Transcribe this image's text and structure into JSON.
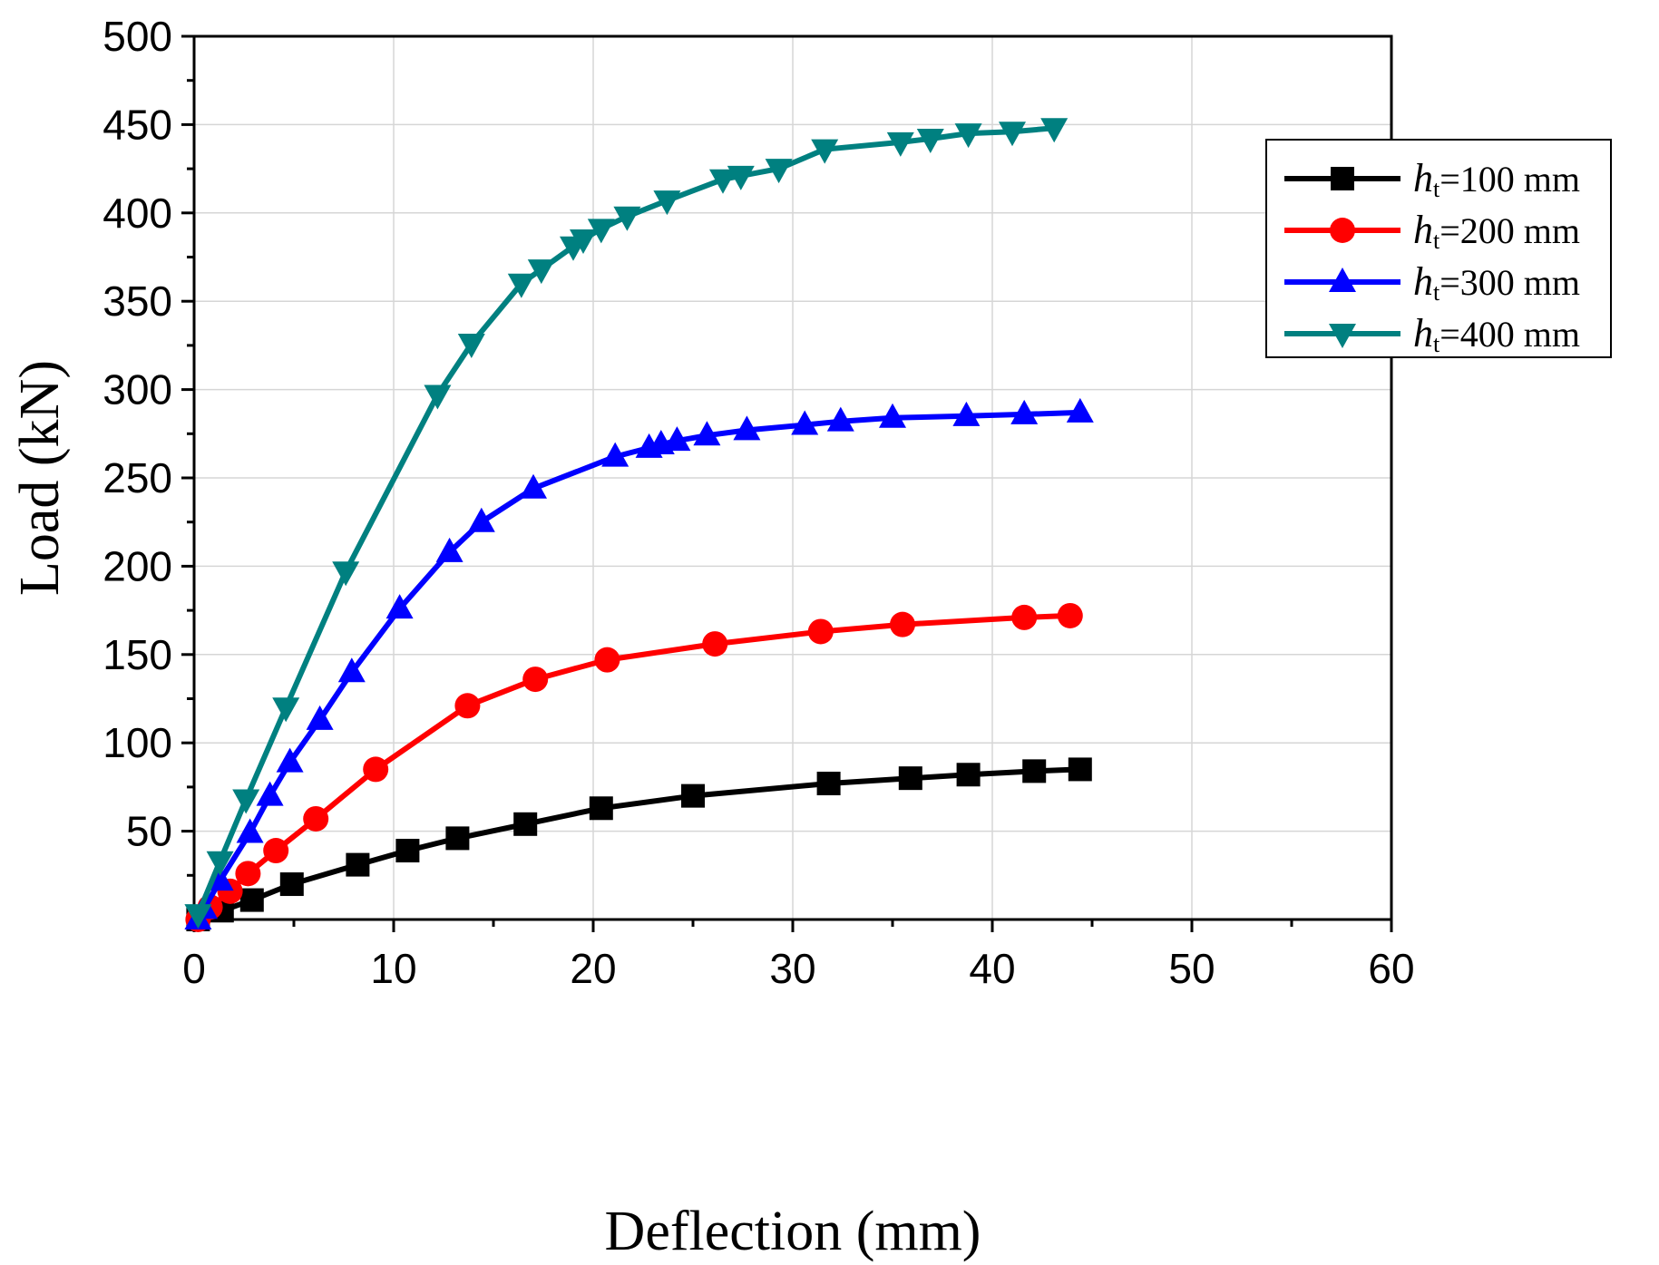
{
  "chart_data": {
    "type": "line",
    "title": "",
    "xlabel": "Deflection (mm)",
    "ylabel": "Load (kN)",
    "xlim": [
      0,
      60
    ],
    "ylim": [
      0,
      500
    ],
    "xticks": [
      "0",
      "10",
      "20",
      "30",
      "40",
      "50",
      "60"
    ],
    "yticks": [
      "50",
      "100",
      "150",
      "200",
      "250",
      "300",
      "350",
      "400",
      "450",
      "500"
    ],
    "grid": true,
    "legend_position": "top-right",
    "series": [
      {
        "name": "ht=100 mm",
        "legend_italic": "h",
        "legend_sub": "t",
        "legend_rest": "=100 mm",
        "color": "#000000",
        "marker": "square",
        "points": [
          [
            0.2,
            0
          ],
          [
            1.4,
            5
          ],
          [
            2.9,
            11
          ],
          [
            4.9,
            20
          ],
          [
            8.2,
            31
          ],
          [
            10.7,
            39
          ],
          [
            13.2,
            46
          ],
          [
            16.6,
            54
          ],
          [
            20.4,
            63
          ],
          [
            25,
            70
          ],
          [
            31.8,
            77
          ],
          [
            35.9,
            80
          ],
          [
            38.8,
            82
          ],
          [
            42.1,
            84
          ],
          [
            44.4,
            85
          ]
        ]
      },
      {
        "name": "ht=200 mm",
        "legend_italic": "h",
        "legend_sub": "t",
        "legend_rest": "=200 mm",
        "color": "#ff0000",
        "marker": "circle",
        "points": [
          [
            0.2,
            0
          ],
          [
            0.8,
            7
          ],
          [
            1.8,
            16
          ],
          [
            2.7,
            26
          ],
          [
            4.1,
            39
          ],
          [
            6.1,
            57
          ],
          [
            9.1,
            85
          ],
          [
            13.7,
            121
          ],
          [
            17.1,
            136
          ],
          [
            20.7,
            147
          ],
          [
            26.1,
            156
          ],
          [
            31.4,
            163
          ],
          [
            35.5,
            167
          ],
          [
            41.6,
            171
          ],
          [
            43.9,
            172
          ]
        ]
      },
      {
        "name": "ht=300 mm",
        "legend_italic": "h",
        "legend_sub": "t",
        "legend_rest": "=300 mm",
        "color": "#0000ff",
        "marker": "triangle-up",
        "points": [
          [
            0.2,
            0
          ],
          [
            0.5,
            6
          ],
          [
            1.3,
            22
          ],
          [
            2.8,
            49
          ],
          [
            3.8,
            70
          ],
          [
            4.8,
            89
          ],
          [
            6.3,
            113
          ],
          [
            7.9,
            140
          ],
          [
            10.3,
            176
          ],
          [
            12.8,
            208
          ],
          [
            14.4,
            225
          ],
          [
            17,
            244
          ],
          [
            21.1,
            262
          ],
          [
            22.8,
            267
          ],
          [
            23.4,
            269
          ],
          [
            24.2,
            271
          ],
          [
            25.7,
            274
          ],
          [
            27.7,
            277
          ],
          [
            30.6,
            280
          ],
          [
            32.4,
            282
          ],
          [
            35,
            284
          ],
          [
            38.7,
            285
          ],
          [
            41.6,
            286
          ],
          [
            44.4,
            287
          ]
        ]
      },
      {
        "name": "ht=400 mm",
        "legend_italic": "h",
        "legend_sub": "t",
        "legend_rest": "=400 mm",
        "color": "#008080",
        "marker": "triangle-down",
        "points": [
          [
            0.2,
            3
          ],
          [
            1.3,
            33
          ],
          [
            2.6,
            68
          ],
          [
            4.6,
            120
          ],
          [
            7.6,
            197
          ],
          [
            12.2,
            297
          ],
          [
            13.9,
            326
          ],
          [
            16.4,
            360
          ],
          [
            17.4,
            368
          ],
          [
            19,
            381
          ],
          [
            19.5,
            385
          ],
          [
            20.4,
            391
          ],
          [
            21.7,
            398
          ],
          [
            23.7,
            407
          ],
          [
            26.5,
            419
          ],
          [
            27.4,
            421
          ],
          [
            29.3,
            425
          ],
          [
            31.6,
            436
          ],
          [
            35.4,
            440
          ],
          [
            36.9,
            442
          ],
          [
            38.8,
            445
          ],
          [
            41,
            446
          ],
          [
            43.1,
            448
          ]
        ]
      }
    ]
  }
}
